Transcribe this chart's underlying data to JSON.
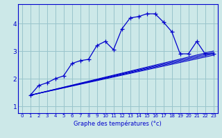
{
  "xlabel": "Graphe des températures (°c)",
  "background_color": "#cce8e8",
  "grid_color": "#99c4cc",
  "line_color": "#0000cc",
  "xlim": [
    -0.5,
    23.5
  ],
  "ylim": [
    0.75,
    4.7
  ],
  "yticks": [
    1,
    2,
    3,
    4
  ],
  "xticks": [
    0,
    1,
    2,
    3,
    4,
    5,
    6,
    7,
    8,
    9,
    10,
    11,
    12,
    13,
    14,
    15,
    16,
    17,
    18,
    19,
    20,
    21,
    22,
    23
  ],
  "series1_x": [
    1,
    2,
    3,
    4,
    5,
    6,
    7,
    8,
    9,
    10,
    11,
    12,
    13,
    14,
    15,
    16,
    17,
    18,
    19,
    20,
    21,
    22,
    23
  ],
  "series1_y": [
    1.4,
    1.75,
    1.85,
    2.0,
    2.1,
    2.55,
    2.65,
    2.7,
    3.2,
    3.35,
    3.05,
    3.8,
    4.2,
    4.25,
    4.35,
    4.35,
    4.05,
    3.7,
    2.9,
    2.9,
    3.35,
    2.9,
    2.9
  ],
  "line2_x": [
    1,
    23
  ],
  "line2_y": [
    1.4,
    2.9
  ],
  "line3_x": [
    1,
    23
  ],
  "line3_y": [
    1.4,
    2.85
  ],
  "line4_x": [
    1,
    23
  ],
  "line4_y": [
    1.4,
    3.0
  ],
  "line5_x": [
    1,
    23
  ],
  "line5_y": [
    1.4,
    2.95
  ],
  "xlabel_fontsize": 6,
  "tick_fontsize": 5
}
